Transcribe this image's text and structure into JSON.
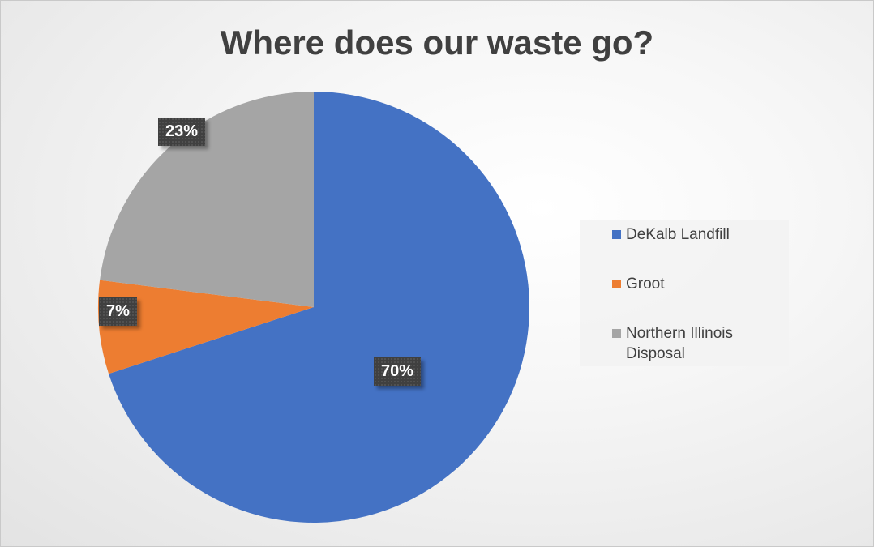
{
  "chart_data": {
    "type": "pie",
    "title": "Where does our waste go?",
    "categories": [
      "DeKalb Landfill",
      "Groot",
      "Northern Illinois Disposal"
    ],
    "values": [
      70,
      7,
      23
    ],
    "labels": [
      "70%",
      "7%",
      "23%"
    ],
    "colors": [
      "#4472C4",
      "#ED7D31",
      "#A5A5A5"
    ],
    "start_angle_deg": 0,
    "direction": "clockwise",
    "legend_position": "right"
  }
}
